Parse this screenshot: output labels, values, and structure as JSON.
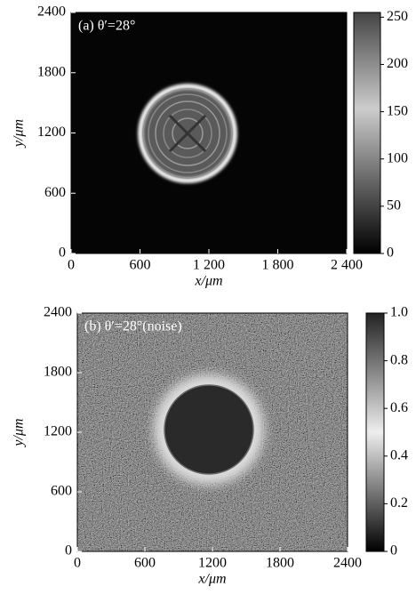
{
  "chart_data": [
    {
      "type": "heatmap",
      "annotation": "(a)  θ′=28°",
      "xlabel": "x/μm",
      "ylabel": "y/μm",
      "xlim": [
        0,
        2400
      ],
      "ylim": [
        0,
        2400
      ],
      "xticks": [
        0,
        600,
        {
          "value": 1200,
          "label": "1 200"
        },
        {
          "value": 1800,
          "label": "1 800"
        },
        {
          "value": 2400,
          "label": "2 400"
        }
      ],
      "yticks": [
        0,
        600,
        1200,
        1800,
        2400
      ],
      "colormap": "gray",
      "colorbar_lim": [
        0,
        255
      ],
      "colorbar_ticks": [
        0,
        50,
        100,
        150,
        200,
        250
      ]
    },
    {
      "type": "heatmap",
      "annotation": "(b)  θ′=28°(noise)",
      "xlabel": "x/μm",
      "ylabel": "y/μm",
      "xlim": [
        0,
        2400
      ],
      "ylim": [
        0,
        2400
      ],
      "xticks": [
        0,
        600,
        1200,
        1800,
        2400
      ],
      "yticks": [
        0,
        600,
        1200,
        1800,
        2400
      ],
      "colormap": "gray",
      "colorbar_lim": [
        0,
        1
      ],
      "colorbar_ticks": [
        0,
        0.2,
        0.4,
        0.6,
        0.8,
        {
          "value": 1,
          "label": "1.0"
        }
      ]
    }
  ]
}
